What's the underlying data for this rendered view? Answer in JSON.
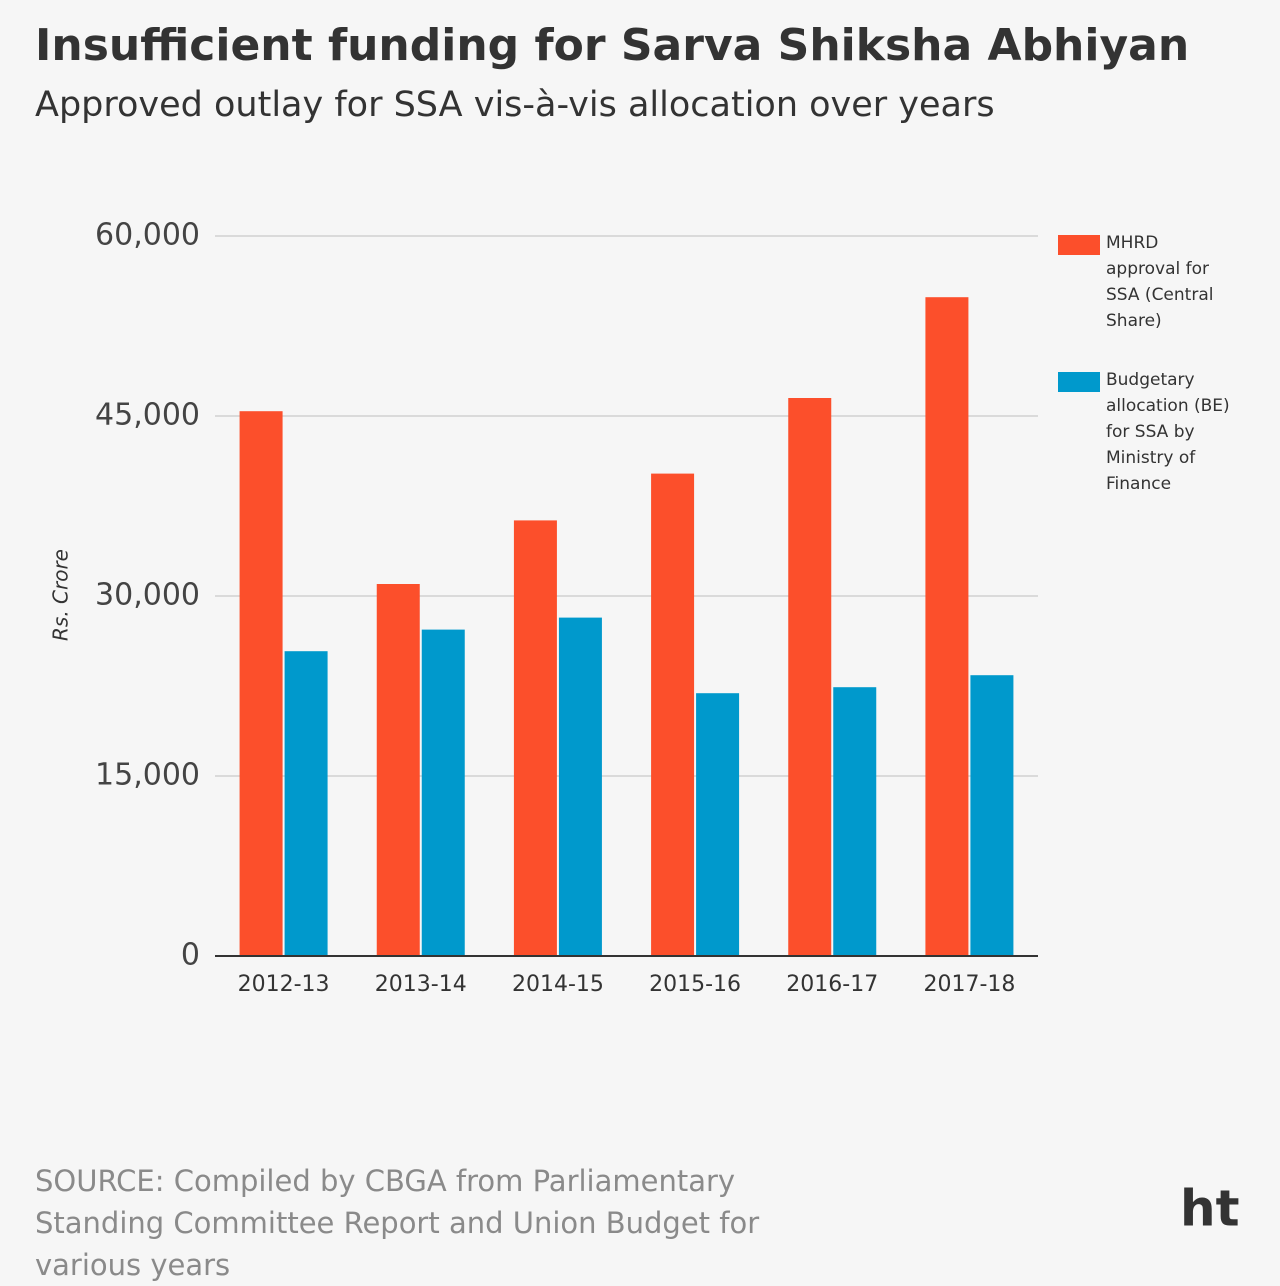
{
  "chart_data": {
    "type": "bar",
    "title": "Insufficient funding for Sarva Shiksha Abhiyan",
    "subtitle": "Approved outlay for SSA vis-à-vis allocation over years",
    "y_label": "Rs. Crore",
    "categories": [
      "2012-13",
      "2013-14",
      "2014-15",
      "2015-16",
      "2016-17",
      "2017-18"
    ],
    "series": [
      {
        "name": "MHRD approval for SSA (Central Share)",
        "color": "#fc4f2b",
        "values": [
          45400,
          31000,
          36300,
          40200,
          46500,
          54900
        ]
      },
      {
        "name": "Budgetary allocation (BE) for SSA by Ministry of Finance",
        "color": "#0099cc",
        "values": [
          25400,
          27200,
          28200,
          21900,
          22400,
          23400
        ]
      }
    ],
    "ylim": [
      0,
      60000
    ],
    "yticks": [
      0,
      {
        "value": 15000,
        "label": "15,000"
      },
      {
        "value": 30000,
        "label": "30,000"
      },
      {
        "value": 45000,
        "label": "45,000"
      },
      {
        "value": 60000,
        "label": "60,000"
      }
    ],
    "grid": true,
    "legend": "right",
    "source": "SOURCE: Compiled by CBGA from Parliamentary Standing Committee Report and Union Budget for various years",
    "logo": "ht"
  }
}
